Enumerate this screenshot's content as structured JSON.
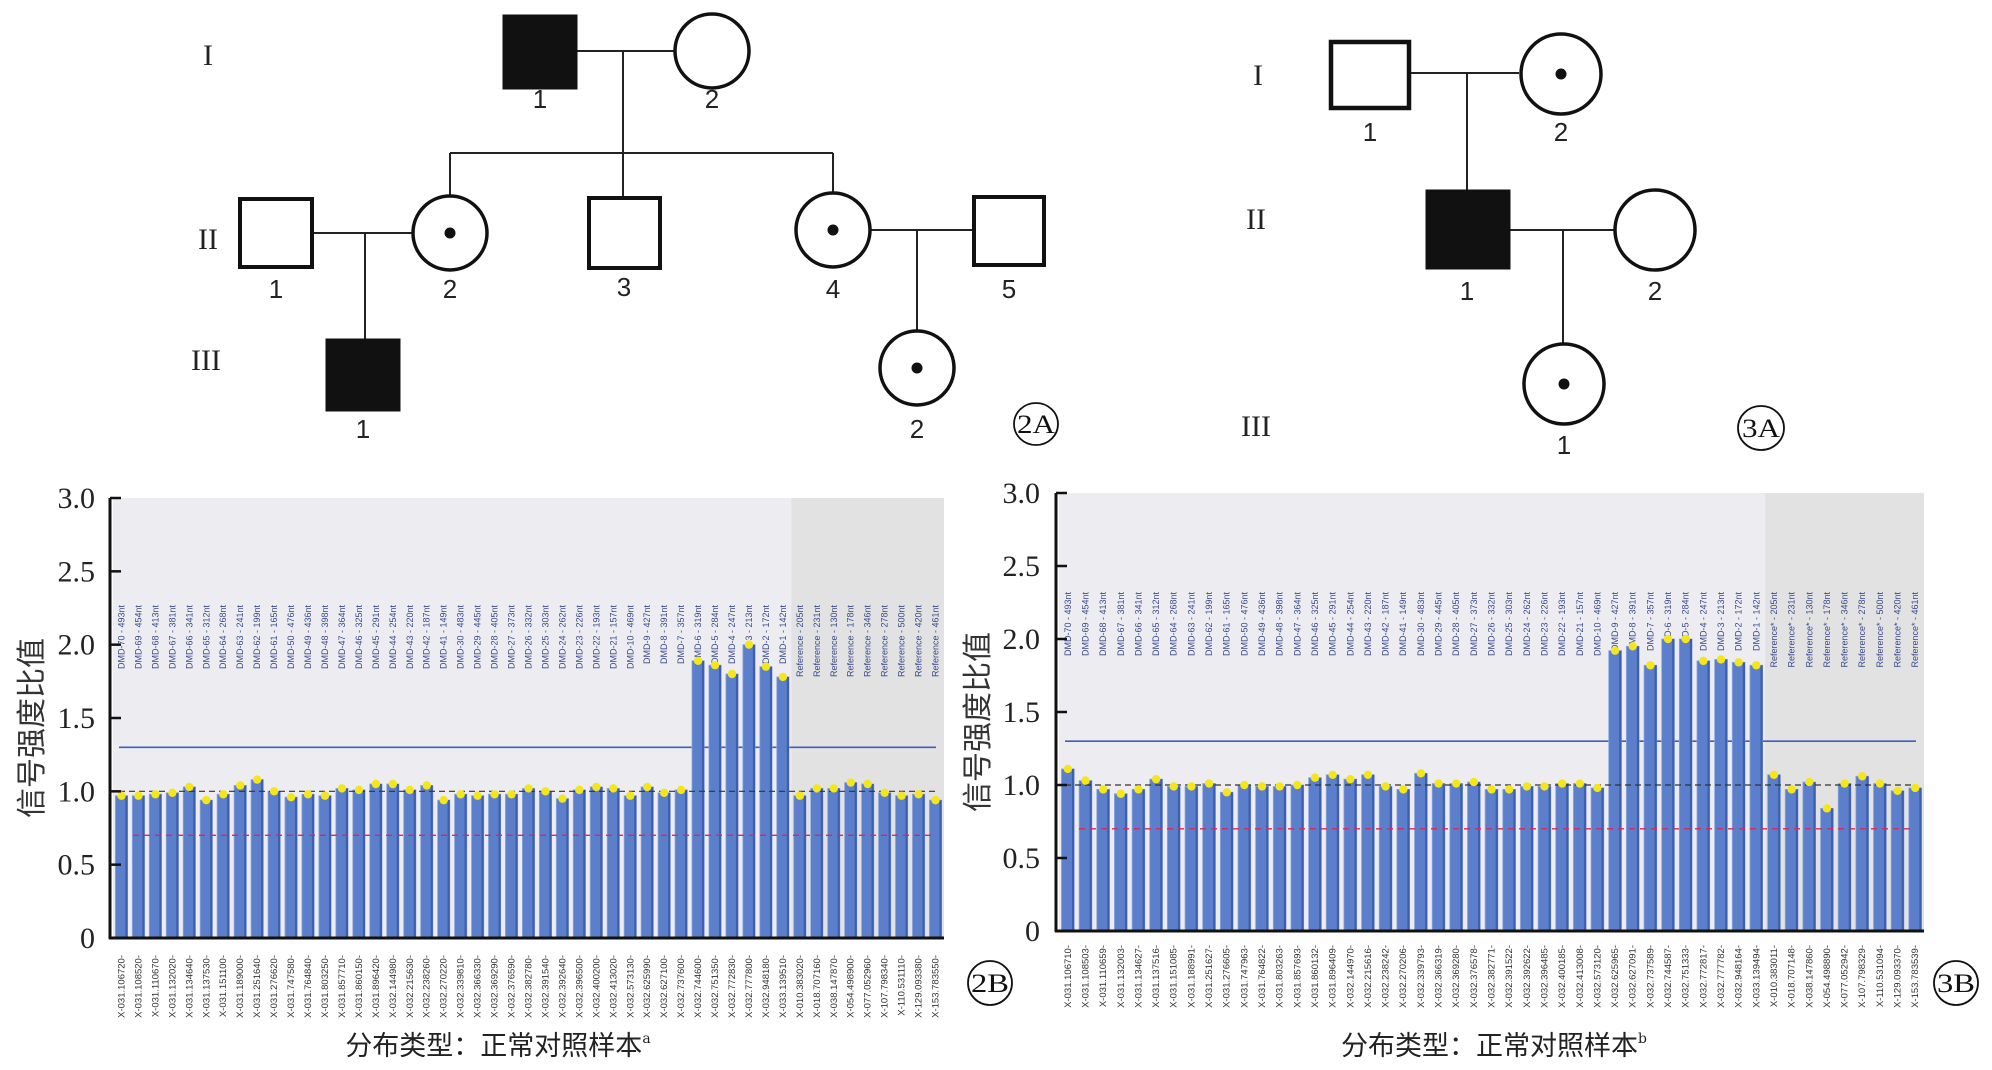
{
  "figure_2A": {
    "panel_label": "2A",
    "generations": [
      "I",
      "II",
      "III"
    ],
    "individuals": [
      {
        "gen": "I",
        "id": "1",
        "sex": "male",
        "status": "affected"
      },
      {
        "gen": "I",
        "id": "2",
        "sex": "female",
        "status": "normal"
      },
      {
        "gen": "II",
        "id": "1",
        "sex": "male",
        "status": "normal"
      },
      {
        "gen": "II",
        "id": "2",
        "sex": "female",
        "status": "carrier"
      },
      {
        "gen": "II",
        "id": "3",
        "sex": "male",
        "status": "normal"
      },
      {
        "gen": "II",
        "id": "4",
        "sex": "female",
        "status": "carrier"
      },
      {
        "gen": "II",
        "id": "5",
        "sex": "male",
        "status": "normal"
      },
      {
        "gen": "III",
        "id": "1",
        "sex": "male",
        "status": "affected"
      },
      {
        "gen": "III",
        "id": "2",
        "sex": "female",
        "status": "carrier"
      }
    ]
  },
  "figure_3A": {
    "panel_label": "3A",
    "generations": [
      "I",
      "II",
      "III"
    ],
    "individuals": [
      {
        "gen": "I",
        "id": "1",
        "sex": "male",
        "status": "normal"
      },
      {
        "gen": "I",
        "id": "2",
        "sex": "female",
        "status": "carrier"
      },
      {
        "gen": "II",
        "id": "1",
        "sex": "male",
        "status": "affected"
      },
      {
        "gen": "II",
        "id": "2",
        "sex": "female",
        "status": "normal"
      },
      {
        "gen": "III",
        "id": "1",
        "sex": "female",
        "status": "carrier"
      }
    ]
  },
  "colors": {
    "bar": "#5b7fcb",
    "bar_edge": "#3d5fae",
    "marker": "#f5e61a",
    "plot_bg": "#ececf1",
    "reference_bg": "#e2e2e3",
    "upper_threshold": "#3d5fc0",
    "baseline": "#333333",
    "lower_threshold": "#e0245a"
  },
  "chart_data": [
    {
      "type": "bar",
      "panel_label": "2B",
      "ylabel": "信号强度比值",
      "xlabel_caption": "分布类型：正常对照样本",
      "caption_superscript": "a",
      "ylim": [
        0,
        3.0
      ],
      "yticks": [
        "0",
        "0.5",
        "1.0",
        "1.5",
        "2.0",
        "2.5",
        "3.0"
      ],
      "reference_lines": {
        "upper": 1.3,
        "baseline": 1.0,
        "lower": 0.7
      },
      "reference_region_start_index": 40,
      "probe_labels": [
        "DMD-70 - 493nt",
        "DMD-69 - 454nt",
        "DMD-68 - 413nt",
        "DMD-67 - 381nt",
        "DMD-66 - 341nt",
        "DMD-65 - 312nt",
        "DMD-64 - 268nt",
        "DMD-63 - 241nt",
        "DMD-62 - 199nt",
        "DMD-61 - 165nt",
        "DMD-50 - 476nt",
        "DMD-49 - 436nt",
        "DMD-48 - 398nt",
        "DMD-47 - 364nt",
        "DMD-46 - 325nt",
        "DMD-45 - 291nt",
        "DMD-44 - 254nt",
        "DMD-43 - 220nt",
        "DMD-42 - 187nt",
        "DMD-41 - 149nt",
        "DMD-30 - 483nt",
        "DMD-29 - 445nt",
        "DMD-28 - 405nt",
        "DMD-27 - 373nt",
        "DMD-26 - 332nt",
        "DMD-25 - 303nt",
        "DMD-24 - 262nt",
        "DMD-23 - 226nt",
        "DMD-22 - 193nt",
        "DMD-21 - 157nt",
        "DMD-10 - 469nt",
        "DMD-9 - 427nt",
        "DMD-8 - 391nt",
        "DMD-7 - 357nt",
        "DMD-6 - 319nt",
        "DMD-5 - 284nt",
        "DMD-4 - 247nt",
        "DMD-3 - 213nt",
        "DMD-2 - 172nt",
        "DMD-1 - 142nt",
        "Reference - 205nt",
        "Reference - 231nt",
        "Reference - 130nt",
        "Reference - 178nt",
        "Reference - 346nt",
        "Reference - 278nt",
        "Reference - 500nt",
        "Reference - 420nt",
        "Reference - 461nt"
      ],
      "categories": [
        "X-031.106720-",
        "X-031.108520-",
        "X-031.110670-",
        "X-031.132020-",
        "X-031.134640-",
        "X-031.137530-",
        "X-031.151100-",
        "X-031.189000-",
        "X-031.251640-",
        "X-031.276620-",
        "X-031.747580-",
        "X-031.764840-",
        "X-031.803250-",
        "X-031.857710-",
        "X-031.860150-",
        "X-031.896420-",
        "X-032.144980-",
        "X-032.215630-",
        "X-032.238260-",
        "X-032.270220-",
        "X-032.339810-",
        "X-032.366330-",
        "X-032.369290-",
        "X-032.376590-",
        "X-032.382780-",
        "X-032.391540-",
        "X-032.392640-",
        "X-032.396500-",
        "X-032.400200-",
        "X-032.413020-",
        "X-032.573130-",
        "X-032.625990-",
        "X-032.627100-",
        "X-032.737600-",
        "X-032.744600-",
        "X-032.751350-",
        "X-032.772830-",
        "X-032.777800-",
        "X-032.948180-",
        "X-033.139510-",
        "X-010.383020-",
        "X-018.707160-",
        "X-038.147870-",
        "X-054.498900-",
        "X-077.052960-",
        "X-107.798340-",
        "X-110.531110-",
        "X-129.093380-",
        "X-153.783550-"
      ],
      "values": [
        0.97,
        0.97,
        0.98,
        0.99,
        1.03,
        0.94,
        0.98,
        1.04,
        1.08,
        1.0,
        0.96,
        0.98,
        0.97,
        1.02,
        1.01,
        1.05,
        1.05,
        1.01,
        1.04,
        0.94,
        0.98,
        0.97,
        0.98,
        0.98,
        1.02,
        1.0,
        0.95,
        1.01,
        1.03,
        1.02,
        0.97,
        1.03,
        0.99,
        1.01,
        1.89,
        1.86,
        1.8,
        2.0,
        1.85,
        1.78,
        0.97,
        1.02,
        1.02,
        1.06,
        1.05,
        0.99,
        0.97,
        0.98,
        0.94
      ]
    },
    {
      "type": "bar",
      "panel_label": "3B",
      "ylabel": "信号强度比值",
      "xlabel_caption": "分布类型：正常对照样本",
      "caption_superscript": "b",
      "ylim": [
        0,
        3.0
      ],
      "yticks": [
        "0",
        "0.5",
        "1.0",
        "1.5",
        "2.0",
        "2.5",
        "3.0"
      ],
      "reference_lines": {
        "upper": 1.3,
        "baseline": 1.0,
        "lower": 0.7
      },
      "reference_region_start_index": 40,
      "probe_labels": [
        "DMD-70 - 493nt",
        "DMD-69 - 454nt",
        "DMD-68 - 413nt",
        "DMD-67 - 381nt",
        "DMD-66 - 341nt",
        "DMD-65 - 312nt",
        "DMD-64 - 268nt",
        "DMD-63 - 241nt",
        "DMD-62 - 199nt",
        "DMD-61 - 165nt",
        "DMD-50 - 476nt",
        "DMD-49 - 436nt",
        "DMD-48 - 398nt",
        "DMD-47 - 364nt",
        "DMD-46 - 325nt",
        "DMD-45 - 291nt",
        "DMD-44 - 254nt",
        "DMD-43 - 220nt",
        "DMD-42 - 187nt",
        "DMD-41 - 149nt",
        "DMD-30 - 483nt",
        "DMD-29 - 445nt",
        "DMD-28 - 405nt",
        "DMD-27 - 373nt",
        "DMD-26 - 332nt",
        "DMD-25 - 303nt",
        "DMD-24 - 262nt",
        "DMD-23 - 226nt",
        "DMD-22 - 193nt",
        "DMD-21 - 157nt",
        "DMD-10 - 469nt",
        "DMD-9 - 427nt",
        "DMD-8 - 391nt",
        "DMD-7 - 357nt",
        "DMD-6 - 319nt",
        "DMD-5 - 284nt",
        "DMD-4 - 247nt",
        "DMD-3 - 213nt",
        "DMD-2 - 172nt",
        "DMD-1 - 142nt",
        "Reference* - 205nt",
        "Reference* - 231nt",
        "Reference* - 130nt",
        "Reference* - 178nt",
        "Reference* - 346nt",
        "Reference* - 278nt",
        "Reference* - 500nt",
        "Reference* - 420nt",
        "Reference* - 461nt"
      ],
      "categories": [
        "X-031.106710-",
        "X-031.108503-",
        "X-031.110659-",
        "X-031.132003-",
        "X-031.134627-",
        "X-031.137516-",
        "X-031.151085-",
        "X-031.188991-",
        "X-031.251627-",
        "X-031.276605-",
        "X-031.747963-",
        "X-031.764822-",
        "X-031.803263-",
        "X-031.857693-",
        "X-031.860132-",
        "X-031.896409-",
        "X-032.144970-",
        "X-032.215616-",
        "X-032.238242-",
        "X-032.270206-",
        "X-032.339793-",
        "X-032.366319-",
        "X-032.369280-",
        "X-032.376578-",
        "X-032.382771-",
        "X-032.391522-",
        "X-032.392622-",
        "X-032.396485-",
        "X-032.400185-",
        "X-032.413008-",
        "X-032.573120-",
        "X-032.625965-",
        "X-032.627091-",
        "X-032.737589-",
        "X-032.744587-",
        "X-032.751333-",
        "X-032.772817-",
        "X-032.777782-",
        "X-032.948164-",
        "X-033.139494-",
        "X-010.383011-",
        "X-018.707148-",
        "X-038.147860-",
        "X-054.498890-",
        "X-077.052942-",
        "X-107.798329-",
        "X-110.531094-",
        "X-129.093370-",
        "X-153.783539-"
      ],
      "values": [
        1.11,
        1.03,
        0.97,
        0.94,
        0.97,
        1.04,
        0.99,
        0.99,
        1.01,
        0.95,
        1.0,
        0.99,
        0.99,
        1.0,
        1.05,
        1.07,
        1.04,
        1.07,
        0.99,
        0.97,
        1.08,
        1.01,
        1.01,
        1.02,
        0.97,
        0.97,
        0.99,
        0.99,
        1.01,
        1.01,
        0.98,
        1.92,
        1.95,
        1.82,
        2.0,
        2.0,
        1.85,
        1.86,
        1.84,
        1.82,
        1.07,
        0.97,
        1.02,
        0.84,
        1.01,
        1.06,
        1.01,
        0.96,
        0.98
      ]
    }
  ]
}
